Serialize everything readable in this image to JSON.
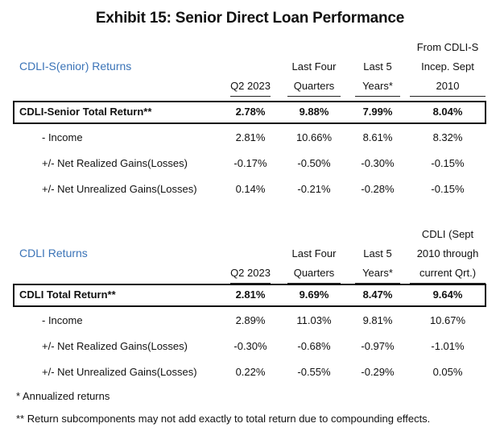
{
  "title": "Exhibit 15: Senior Direct Loan Performance",
  "senior": {
    "label": "CDLI-S(enior) Returns",
    "headers": [
      {
        "lines": [
          "Q2 2023"
        ]
      },
      {
        "lines": [
          "Last Four",
          "Quarters"
        ]
      },
      {
        "lines": [
          "Last 5",
          "Years*"
        ]
      },
      {
        "lines": [
          "From CDLI-S",
          "Incep. Sept",
          "2010"
        ]
      }
    ],
    "rows": [
      {
        "label": "CDLI-Senior Total Return**",
        "values": [
          "2.78%",
          "9.88%",
          "7.99%",
          "8.04%"
        ]
      },
      {
        "label": "- Income",
        "values": [
          "2.81%",
          "10.66%",
          "8.61%",
          "8.32%"
        ]
      },
      {
        "label": "+/- Net Realized Gains(Losses)",
        "values": [
          "-0.17%",
          "-0.50%",
          "-0.30%",
          "-0.15%"
        ]
      },
      {
        "label": "+/- Net Unrealized Gains(Losses)",
        "values": [
          "0.14%",
          "-0.21%",
          "-0.28%",
          "-0.15%"
        ]
      }
    ]
  },
  "cdli": {
    "label": "CDLI Returns",
    "headers": [
      {
        "lines": [
          "Q2 2023"
        ]
      },
      {
        "lines": [
          "Last Four",
          "Quarters"
        ]
      },
      {
        "lines": [
          "Last 5",
          "Years*"
        ]
      },
      {
        "lines": [
          "CDLI (Sept",
          "2010 through",
          "current Qrt.)"
        ]
      }
    ],
    "rows": [
      {
        "label": "CDLI Total Return**",
        "values": [
          "2.81%",
          "9.69%",
          "8.47%",
          "9.64%"
        ]
      },
      {
        "label": "- Income",
        "values": [
          "2.89%",
          "11.03%",
          "9.81%",
          "10.67%"
        ]
      },
      {
        "label": "+/- Net Realized Gains(Losses)",
        "values": [
          "-0.30%",
          "-0.68%",
          "-0.97%",
          "-1.01%"
        ]
      },
      {
        "label": "+/- Net Unrealized Gains(Losses)",
        "values": [
          "0.22%",
          "-0.55%",
          "-0.29%",
          "0.05%"
        ]
      }
    ]
  },
  "notes": [
    "* Annualized returns",
    "** Return subcomponents may not add exactly to total return due to compounding effects."
  ]
}
